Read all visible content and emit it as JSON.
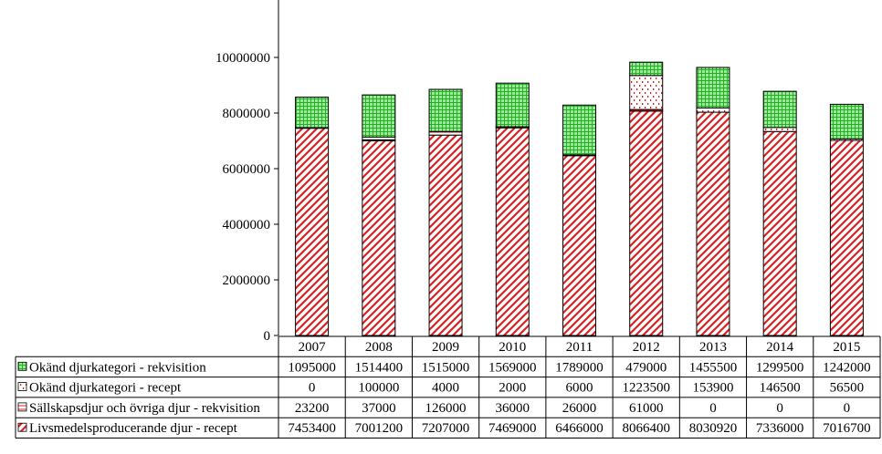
{
  "chart_data": {
    "type": "bar",
    "stacked": true,
    "categories": [
      "2007",
      "2008",
      "2009",
      "2010",
      "2011",
      "2012",
      "2013",
      "2014",
      "2015"
    ],
    "ylim": [
      0,
      12000000
    ],
    "yticks": [
      0,
      2000000,
      4000000,
      6000000,
      8000000,
      10000000
    ],
    "ytick_labels": [
      "0",
      "2000000",
      "4000000",
      "6000000",
      "8000000",
      "10000000"
    ],
    "grid": false,
    "legend": "data-table-below",
    "series": [
      {
        "name": "Livsmedelsproducerande djur - recept",
        "color": "#e02020",
        "pattern": "red-diagonal-stripes",
        "values": [
          7453400,
          7001200,
          7207000,
          7469000,
          6466000,
          8066400,
          8030920,
          7336000,
          7016700
        ],
        "labels": [
          "7453400",
          "7001200",
          "7207000",
          "7469000",
          "6466000",
          "8066400",
          "8030920",
          "7336000",
          "7016700"
        ]
      },
      {
        "name": "Sällskapsdjur och övriga djur - rekvisition",
        "color": "#e02020",
        "pattern": "red-horizontal-lines",
        "values": [
          23200,
          37000,
          126000,
          36000,
          26000,
          61000,
          0,
          0,
          0
        ],
        "labels": [
          "23200",
          "37000",
          "126000",
          "36000",
          "26000",
          "61000",
          "0",
          "0",
          "0"
        ]
      },
      {
        "name": "Okänd djurkategori - recept",
        "color": "#e02020",
        "pattern": "red-dots",
        "values": [
          0,
          100000,
          4000,
          2000,
          6000,
          1223500,
          153900,
          146500,
          56500
        ],
        "labels": [
          "0",
          "100000",
          "4000",
          "2000",
          "6000",
          "1223500",
          "153900",
          "146500",
          "56500"
        ]
      },
      {
        "name": "Okänd djurkategori - rekvisition",
        "color": "#33cc33",
        "pattern": "green-grid",
        "values": [
          1095000,
          1514400,
          1515000,
          1569000,
          1789000,
          479000,
          1455500,
          1299500,
          1242000
        ],
        "labels": [
          "1095000",
          "1514400",
          "1515000",
          "1569000",
          "1789000",
          "479000",
          "1455500",
          "1299500",
          "1242000"
        ]
      }
    ],
    "table_row_order": [
      3,
      2,
      1,
      0
    ]
  }
}
